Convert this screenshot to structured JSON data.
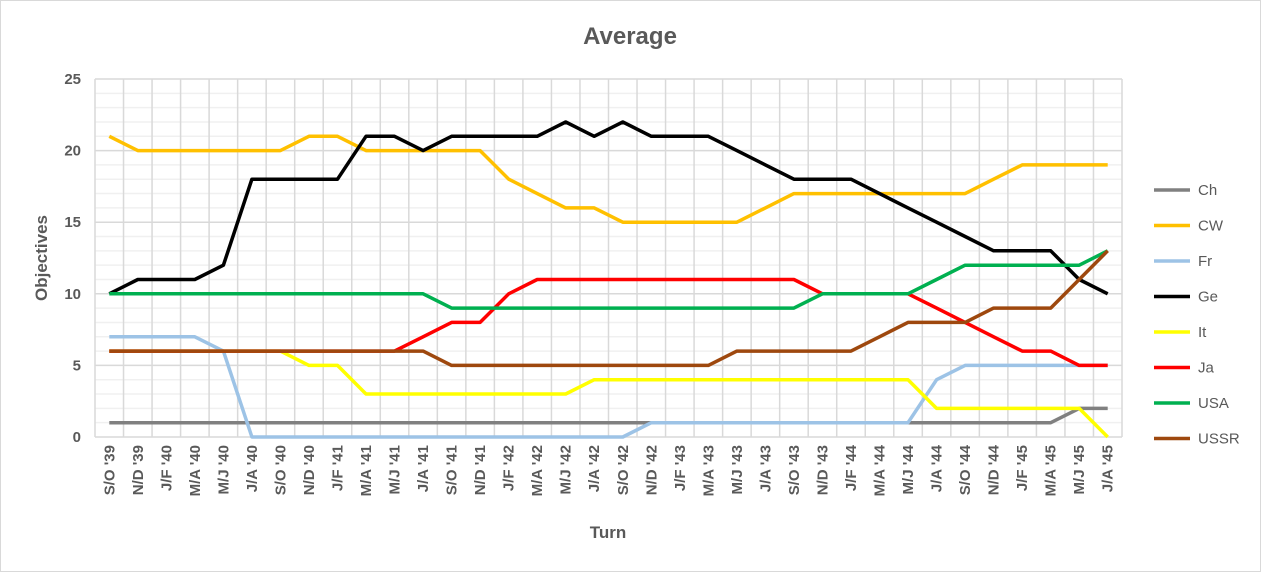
{
  "chart_data": {
    "type": "line",
    "title": "Average",
    "xlabel": "Turn",
    "ylabel": "Objectives",
    "ylim": [
      0,
      25
    ],
    "yticks": [
      0,
      5,
      10,
      15,
      20,
      25
    ],
    "grid": true,
    "legend_position": "right",
    "categories": [
      "S/O '39",
      "N/D '39",
      "J/F '40",
      "M/A '40",
      "M/J '40",
      "J/A '40",
      "S/O '40",
      "N/D '40",
      "J/F '41",
      "M/A '41",
      "M/J '41",
      "J/A '41",
      "S/O '41",
      "N/D '41",
      "J/F '42",
      "M/A '42",
      "M/J '42",
      "J/A '42",
      "S/O '42",
      "N/D '42",
      "J/F '43",
      "M/A '43",
      "M/J '43",
      "J/A '43",
      "S/O '43",
      "N/D '43",
      "J/F '44",
      "M/A '44",
      "M/J '44",
      "J/A '44",
      "S/O '44",
      "N/D '44",
      "J/F '45",
      "M/A '45",
      "M/J '45",
      "J/A '45"
    ],
    "series": [
      {
        "name": "Ch",
        "color": "#808080",
        "values": [
          1,
          1,
          1,
          1,
          1,
          1,
          1,
          1,
          1,
          1,
          1,
          1,
          1,
          1,
          1,
          1,
          1,
          1,
          1,
          1,
          1,
          1,
          1,
          1,
          1,
          1,
          1,
          1,
          1,
          1,
          1,
          1,
          1,
          1,
          2,
          2
        ]
      },
      {
        "name": "CW",
        "color": "#ffc000",
        "values": [
          21,
          20,
          20,
          20,
          20,
          20,
          20,
          21,
          21,
          20,
          20,
          20,
          20,
          20,
          18,
          17,
          16,
          16,
          15,
          15,
          15,
          15,
          15,
          16,
          17,
          17,
          17,
          17,
          17,
          17,
          17,
          18,
          19,
          19,
          19,
          19
        ]
      },
      {
        "name": "Fr",
        "color": "#9dc3e6",
        "values": [
          7,
          7,
          7,
          7,
          6,
          0,
          0,
          0,
          0,
          0,
          0,
          0,
          0,
          0,
          0,
          0,
          0,
          0,
          0,
          1,
          1,
          1,
          1,
          1,
          1,
          1,
          1,
          1,
          1,
          4,
          5,
          5,
          5,
          5,
          5,
          5
        ]
      },
      {
        "name": "Ge",
        "color": "#000000",
        "values": [
          10,
          11,
          11,
          11,
          12,
          18,
          18,
          18,
          18,
          21,
          21,
          20,
          21,
          21,
          21,
          21,
          22,
          21,
          22,
          21,
          21,
          21,
          20,
          19,
          18,
          18,
          18,
          17,
          16,
          15,
          14,
          13,
          13,
          13,
          11,
          10
        ]
      },
      {
        "name": "It",
        "color": "#ffff00",
        "values": [
          6,
          6,
          6,
          6,
          6,
          6,
          6,
          5,
          5,
          3,
          3,
          3,
          3,
          3,
          3,
          3,
          3,
          4,
          4,
          4,
          4,
          4,
          4,
          4,
          4,
          4,
          4,
          4,
          4,
          2,
          2,
          2,
          2,
          2,
          2,
          0
        ]
      },
      {
        "name": "Ja",
        "color": "#ff0000",
        "values": [
          6,
          6,
          6,
          6,
          6,
          6,
          6,
          6,
          6,
          6,
          6,
          7,
          8,
          8,
          10,
          11,
          11,
          11,
          11,
          11,
          11,
          11,
          11,
          11,
          11,
          10,
          10,
          10,
          10,
          9,
          8,
          7,
          6,
          6,
          5,
          5
        ]
      },
      {
        "name": "USA",
        "color": "#00b050",
        "values": [
          10,
          10,
          10,
          10,
          10,
          10,
          10,
          10,
          10,
          10,
          10,
          10,
          9,
          9,
          9,
          9,
          9,
          9,
          9,
          9,
          9,
          9,
          9,
          9,
          9,
          10,
          10,
          10,
          10,
          11,
          12,
          12,
          12,
          12,
          12,
          13
        ]
      },
      {
        "name": "USSR",
        "color": "#9e480e",
        "values": [
          6,
          6,
          6,
          6,
          6,
          6,
          6,
          6,
          6,
          6,
          6,
          6,
          5,
          5,
          5,
          5,
          5,
          5,
          5,
          5,
          5,
          5,
          6,
          6,
          6,
          6,
          6,
          7,
          8,
          8,
          8,
          9,
          9,
          9,
          11,
          13
        ]
      }
    ]
  }
}
